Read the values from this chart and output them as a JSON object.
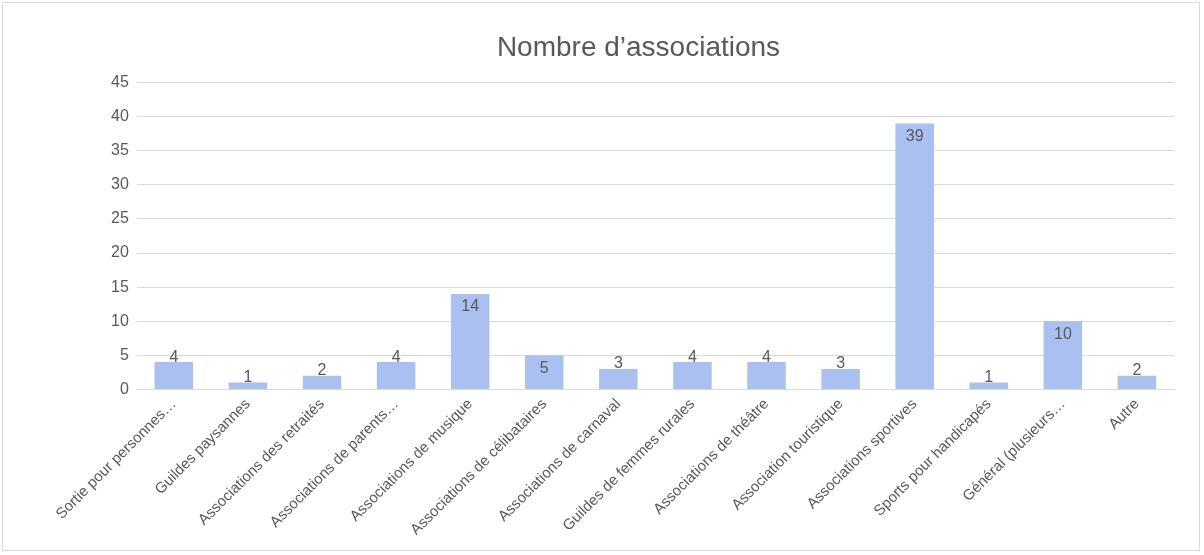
{
  "chart_data": {
    "type": "bar",
    "title": "Nombre d’associations",
    "categories": [
      "Sortie pour personnes…",
      "Guildes paysannes",
      "Associations des retraités",
      "Associations de parents…",
      "Associations de musique",
      "Associations de célibataires",
      "Associations de carnaval",
      "Guildes de femmes rurales",
      "Associations de théâtre",
      "Association touristique",
      "Associations sportives",
      "Sports pour handicapés",
      "Général (plusieurs…",
      "Autre"
    ],
    "values": [
      4,
      1,
      2,
      4,
      14,
      5,
      3,
      4,
      4,
      3,
      39,
      1,
      10,
      2
    ],
    "color": "#a9c0f0",
    "ylim": [
      0,
      45
    ],
    "yticks": [
      0,
      5,
      10,
      15,
      20,
      25,
      30,
      35,
      40,
      45
    ],
    "grid": "y",
    "legend": false,
    "data_labels": true
  }
}
